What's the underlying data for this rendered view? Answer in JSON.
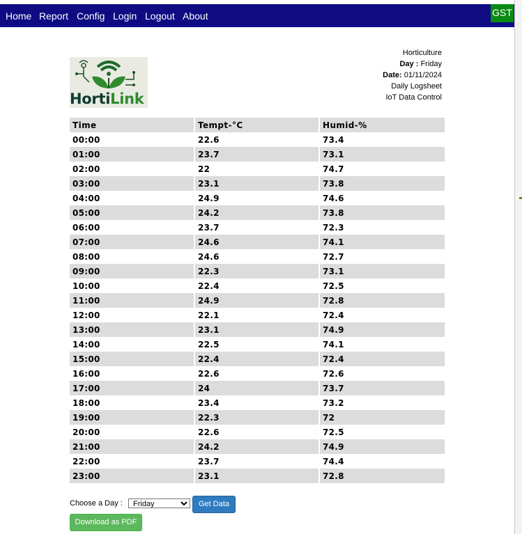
{
  "nav": {
    "items": [
      {
        "label": "Home"
      },
      {
        "label": "Report"
      },
      {
        "label": "Config"
      },
      {
        "label": "Login"
      },
      {
        "label": "Logout"
      },
      {
        "label": "About"
      }
    ],
    "badge": "GST",
    "bg_color": "#0e0b83",
    "badge_color": "#0a8a14"
  },
  "logo": {
    "text_part1": "Horti",
    "text_part2": "Link"
  },
  "info": {
    "title": "Horticulture",
    "day_label": "Day :",
    "day_value": "Friday",
    "date_label": "Date:",
    "date_value": "01/11/2024",
    "line4": "Daily Logsheet",
    "line5": "IoT Data Control"
  },
  "table": {
    "headers": [
      "Time",
      "Tempt-°C",
      "Humid-%"
    ],
    "rows": [
      [
        "00:00",
        "22.6",
        "73.4"
      ],
      [
        "01:00",
        "23.7",
        "73.1"
      ],
      [
        "02:00",
        "22",
        "74.7"
      ],
      [
        "03:00",
        "23.1",
        "73.8"
      ],
      [
        "04:00",
        "24.9",
        "74.6"
      ],
      [
        "05:00",
        "24.2",
        "73.8"
      ],
      [
        "06:00",
        "23.7",
        "72.3"
      ],
      [
        "07:00",
        "24.6",
        "74.1"
      ],
      [
        "08:00",
        "24.6",
        "72.7"
      ],
      [
        "09:00",
        "22.3",
        "73.1"
      ],
      [
        "10:00",
        "22.4",
        "72.5"
      ],
      [
        "11:00",
        "24.9",
        "72.8"
      ],
      [
        "12:00",
        "22.1",
        "72.4"
      ],
      [
        "13:00",
        "23.1",
        "74.9"
      ],
      [
        "14:00",
        "22.5",
        "74.1"
      ],
      [
        "15:00",
        "22.4",
        "72.4"
      ],
      [
        "16:00",
        "22.6",
        "72.6"
      ],
      [
        "17:00",
        "24",
        "73.7"
      ],
      [
        "18:00",
        "23.4",
        "73.2"
      ],
      [
        "19:00",
        "22.3",
        "72"
      ],
      [
        "20:00",
        "22.6",
        "72.5"
      ],
      [
        "21:00",
        "24.2",
        "74.9"
      ],
      [
        "22:00",
        "23.7",
        "74.4"
      ],
      [
        "23:00",
        "23.1",
        "72.8"
      ]
    ]
  },
  "controls": {
    "choose_label": "Choose a Day :",
    "selected_day": "Friday",
    "get_button": "Get Data",
    "pdf_button": "Download as PDF",
    "get_color": "#2f7bbf",
    "pdf_color": "#5cb85c"
  }
}
